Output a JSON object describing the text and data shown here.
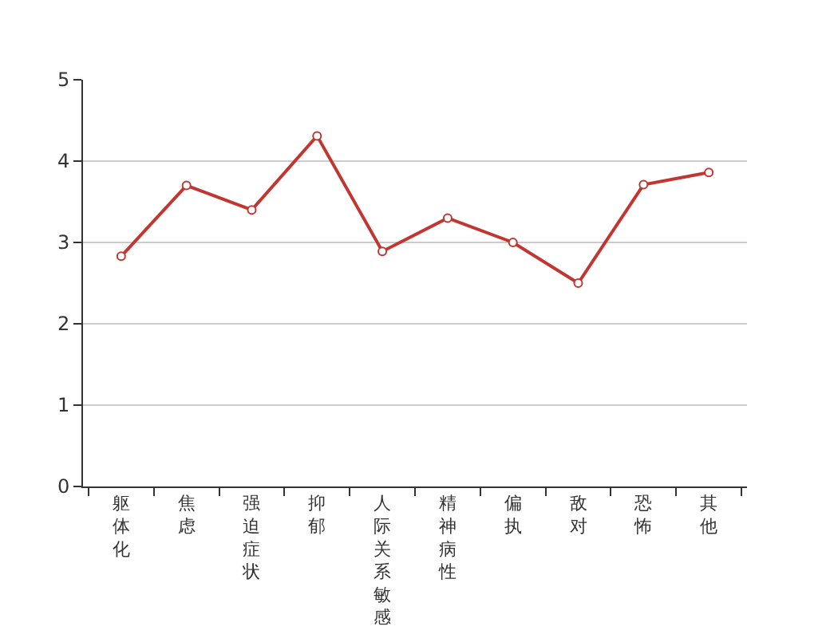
{
  "chart_data": {
    "type": "line",
    "categories": [
      "躯体化",
      "焦虑",
      "强迫症状",
      "抑郁",
      "人际关系敏感",
      "精神病性",
      "偏执",
      "敌对",
      "恐怖",
      "其他"
    ],
    "series": [
      {
        "color": "#c23531",
        "values": [
          2.83,
          3.7,
          3.4,
          4.31,
          2.89,
          3.3,
          3.0,
          2.5,
          3.71,
          3.86
        ]
      }
    ],
    "ylim": [
      0,
      5
    ],
    "yticks": [
      0,
      1,
      2,
      3,
      4,
      5
    ],
    "grid": "y",
    "marker": "circle",
    "line_style": "solid"
  }
}
